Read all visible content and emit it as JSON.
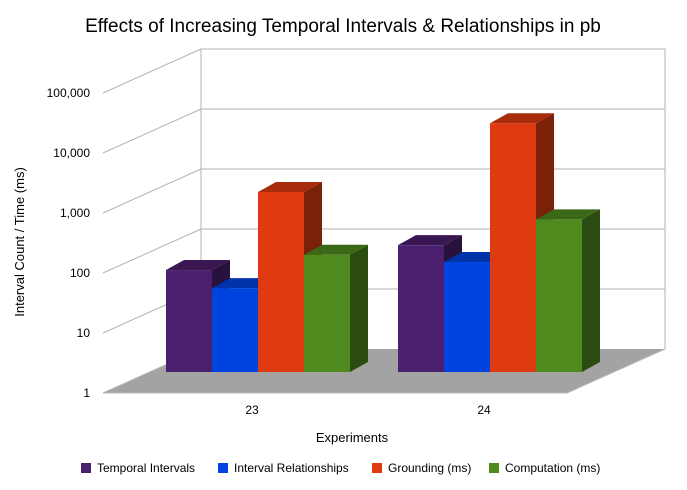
{
  "chart_data": {
    "type": "bar",
    "title": "Effects of Increasing Temporal Intervals & Relationships in pb",
    "xlabel": "Experiments",
    "ylabel": "Interval Count / Time (ms)",
    "yscale": "log",
    "ylim": [
      1,
      100000
    ],
    "yticks": [
      "1",
      "10",
      "100",
      "1,000",
      "10,000",
      "100,000"
    ],
    "grid": true,
    "legend_position": "bottom",
    "categories": [
      "23",
      "24"
    ],
    "series": [
      {
        "name": "Temporal Intervals",
        "color": "#4a1f6e",
        "values": [
          50,
          130
        ]
      },
      {
        "name": "Interval Relationships",
        "color": "#0044e0",
        "values": [
          25,
          68
        ]
      },
      {
        "name": "Grounding (ms)",
        "color": "#e03a10",
        "values": [
          1000,
          14000
        ]
      },
      {
        "name": "Computation (ms)",
        "color": "#4f8a1e",
        "values": [
          90,
          350
        ]
      }
    ]
  }
}
